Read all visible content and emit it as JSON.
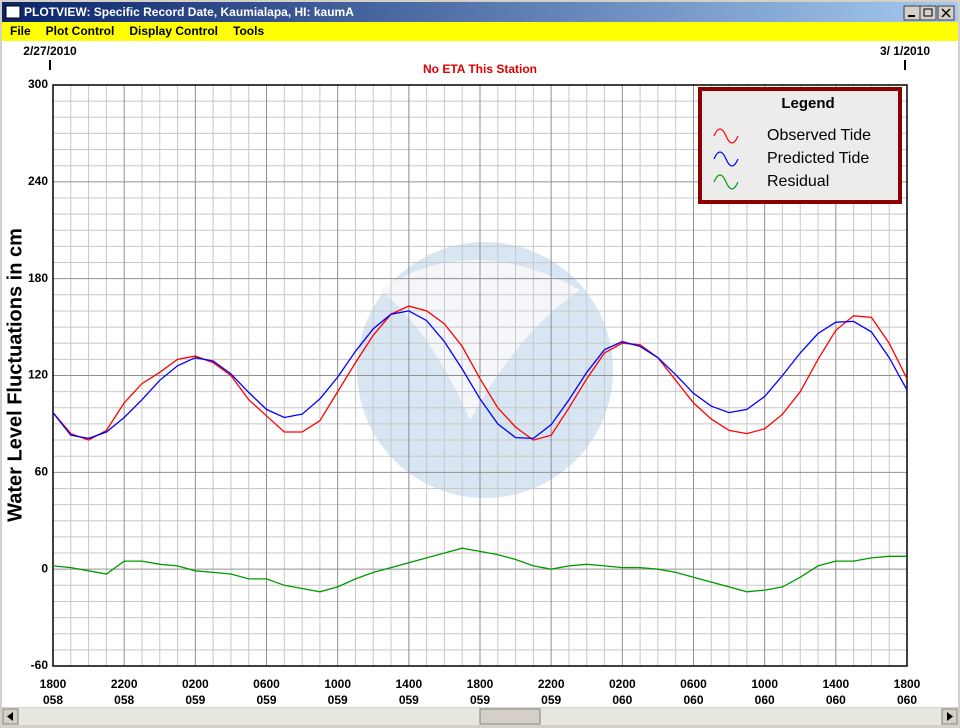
{
  "window": {
    "title": "PLOTVIEW: Specific Record Date, Kaumialapa, HI: kaumA",
    "menu": [
      "File",
      "Plot Control",
      "Display Control",
      "Tools"
    ]
  },
  "chart_data": {
    "type": "line",
    "start_date": "2/27/2010",
    "end_date": "3/ 1/2010",
    "subtitle": "No ETA This Station",
    "y_label": "Water Level Fluctuations in cm",
    "legend_title": "Legend",
    "legend": "top-right",
    "grid": true,
    "x": [
      0,
      1,
      2,
      3,
      4,
      5,
      6,
      7,
      8,
      9,
      10,
      11,
      12,
      13,
      14,
      15,
      16,
      17,
      18,
      19,
      20,
      21,
      22,
      23,
      24,
      25,
      26,
      27,
      28,
      29,
      30,
      31,
      32,
      33,
      34,
      35,
      36,
      37,
      38,
      39,
      40,
      41,
      42,
      43,
      44,
      45,
      46,
      47,
      48
    ],
    "xlim": [
      0,
      48
    ],
    "xticks": [
      {
        "value": 0,
        "label": "1800",
        "sublabel": "058"
      },
      {
        "value": 4,
        "label": "2200",
        "sublabel": "058"
      },
      {
        "value": 8,
        "label": "0200",
        "sublabel": "059"
      },
      {
        "value": 12,
        "label": "0600",
        "sublabel": "059"
      },
      {
        "value": 16,
        "label": "1000",
        "sublabel": "059"
      },
      {
        "value": 20,
        "label": "1400",
        "sublabel": "059"
      },
      {
        "value": 24,
        "label": "1800",
        "sublabel": "059"
      },
      {
        "value": 28,
        "label": "2200",
        "sublabel": "059"
      },
      {
        "value": 32,
        "label": "0200",
        "sublabel": "060"
      },
      {
        "value": 36,
        "label": "0600",
        "sublabel": "060"
      },
      {
        "value": 40,
        "label": "1000",
        "sublabel": "060"
      },
      {
        "value": 44,
        "label": "1400",
        "sublabel": "060"
      },
      {
        "value": 48,
        "label": "1800",
        "sublabel": "060"
      }
    ],
    "ylim": [
      -60,
      300
    ],
    "yticks": [
      -60,
      0,
      60,
      120,
      180,
      240,
      300
    ],
    "series": [
      {
        "name": "Observed Tide",
        "color": "#ff0000",
        "values": [
          97,
          84,
          80,
          86,
          103,
          115,
          122,
          130,
          132,
          128,
          120,
          105,
          95,
          85,
          85,
          92,
          110,
          128,
          145,
          158,
          163,
          160,
          152,
          138,
          118,
          100,
          88,
          80,
          83,
          100,
          118,
          134,
          140,
          139,
          131,
          117,
          103,
          93,
          86,
          84,
          87,
          96,
          110,
          130,
          148,
          157,
          156,
          140,
          118
        ]
      },
      {
        "name": "Predicted Tide",
        "color": "#0000ff",
        "values": [
          97,
          83,
          81,
          85,
          94,
          105,
          117,
          126,
          131,
          129,
          121,
          109.5,
          99,
          94,
          96,
          105.5,
          119,
          135,
          149,
          158,
          160,
          154,
          141,
          124,
          105.5,
          90,
          81.5,
          81,
          89.5,
          105,
          122,
          136,
          141,
          138,
          131,
          120.5,
          109,
          101,
          97,
          99,
          107,
          120,
          134,
          146,
          153,
          153.5,
          147,
          131,
          111
        ]
      },
      {
        "name": "Residual",
        "color": "#009900",
        "values": [
          2,
          1,
          -1,
          -3,
          5,
          5,
          3,
          2,
          -1,
          -2,
          -3,
          -6,
          -6,
          -10,
          -12,
          -14,
          -11,
          -6,
          -2,
          1,
          4,
          7,
          10,
          13,
          11,
          9,
          6,
          2,
          0,
          2,
          3,
          2,
          1,
          1,
          0,
          -2,
          -5,
          -8,
          -11,
          -14,
          -13,
          -11,
          -5,
          2,
          5,
          5,
          7,
          8,
          8
        ]
      }
    ]
  }
}
